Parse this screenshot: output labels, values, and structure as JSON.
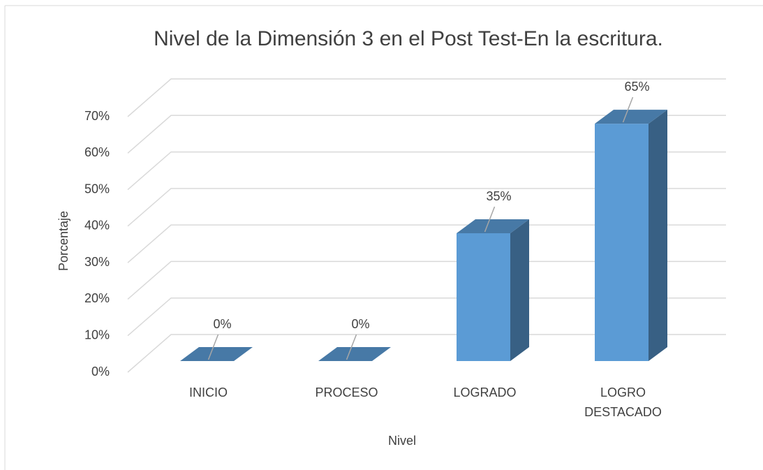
{
  "chart_data": {
    "type": "bar3d",
    "title": "Nivel de la Dimensión 3 en el Post Test-En la escritura.",
    "x_label": "Nivel",
    "y_label": "Porcentaje",
    "categories": [
      "INICIO",
      "PROCESO",
      "LOGRADO",
      "LOGRO DESTACADO"
    ],
    "values": [
      0,
      0,
      35,
      65
    ],
    "value_labels": [
      "0%",
      "0%",
      "35%",
      "65%"
    ],
    "color": "#5b9bd5",
    "ylim": [
      0,
      70
    ],
    "yticks": [
      {
        "value": 0,
        "label": "0%"
      },
      {
        "value": 10,
        "label": "10%"
      },
      {
        "value": 20,
        "label": "20%"
      },
      {
        "value": 30,
        "label": "30%"
      },
      {
        "value": 40,
        "label": "40%"
      },
      {
        "value": 50,
        "label": "50%"
      },
      {
        "value": 60,
        "label": "60%"
      },
      {
        "value": 70,
        "label": "70%"
      }
    ],
    "grid": true
  }
}
